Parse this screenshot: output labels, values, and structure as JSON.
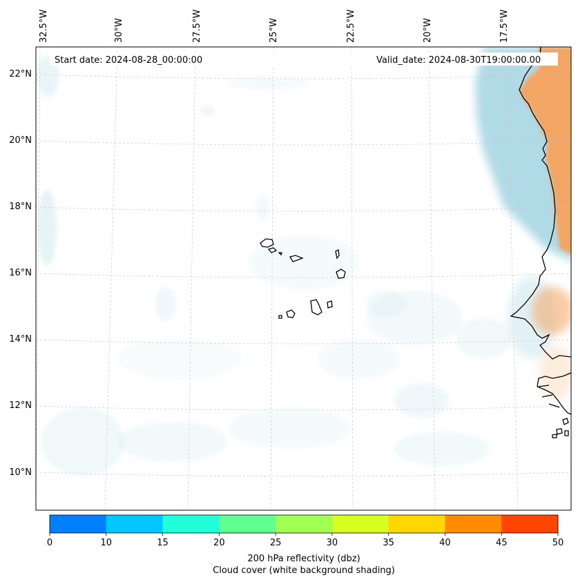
{
  "map": {
    "start_date": "Start date: 2024-08-28_00:00:00",
    "valid_date": "Valid_date: 2024-08-30T19:00:00.00",
    "lon_labels": [
      "32.5°W",
      "30°W",
      "27.5°W",
      "25°W",
      "22.5°W",
      "20°W",
      "17.5°W"
    ],
    "lat_labels": [
      "22°N",
      "20°N",
      "18°N",
      "16°N",
      "14°N",
      "12°N",
      "10°N"
    ]
  },
  "colorbar": {
    "ticks": [
      "0",
      "10",
      "15",
      "20",
      "25",
      "30",
      "35",
      "40",
      "45",
      "50"
    ],
    "colors": [
      "#0080ff",
      "#00c8ff",
      "#20ffd8",
      "#60ff90",
      "#a0ff50",
      "#d8ff20",
      "#ffd700",
      "#ff8c00",
      "#ff4500"
    ],
    "label_line1": "200 hPa reflectivity (dbz)",
    "label_line2": "Cloud cover (white background shading)"
  },
  "colors": {
    "cloud": "#add8e6",
    "reflectivity_shading": "#f4a460"
  }
}
